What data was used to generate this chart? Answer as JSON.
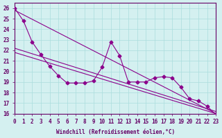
{
  "xlabel": "Windchill (Refroidissement éolien,°C)",
  "background_color": "#d4f0f0",
  "grid_color": "#aadddd",
  "line_color": "#8b008b",
  "xlim": [
    0,
    23
  ],
  "ylim": [
    16,
    26.5
  ],
  "yticks": [
    16,
    17,
    18,
    19,
    20,
    21,
    22,
    23,
    24,
    25,
    26
  ],
  "xticks": [
    0,
    1,
    2,
    3,
    4,
    5,
    6,
    7,
    8,
    9,
    10,
    11,
    12,
    13,
    14,
    15,
    16,
    17,
    18,
    19,
    20,
    21,
    22,
    23
  ],
  "series1_x": [
    0,
    1,
    2,
    3,
    4,
    5,
    6,
    7,
    8,
    9,
    10,
    11,
    12,
    13,
    14,
    15,
    16,
    17,
    18,
    19,
    20,
    21,
    22,
    23
  ],
  "series1_y": [
    26.0,
    24.8,
    22.8,
    21.6,
    20.5,
    19.6,
    18.9,
    18.9,
    18.9,
    19.1,
    20.4,
    22.8,
    21.5,
    19.0,
    19.0,
    19.0,
    19.4,
    19.5,
    19.4,
    18.5,
    17.4,
    17.2,
    16.7,
    15.9
  ],
  "trend1_x": [
    0,
    23
  ],
  "trend1_y": [
    25.8,
    16.0
  ],
  "trend2_x": [
    0,
    23
  ],
  "trend2_y": [
    22.2,
    16.2
  ],
  "trend3_x": [
    0,
    23
  ],
  "trend3_y": [
    21.8,
    16.0
  ]
}
